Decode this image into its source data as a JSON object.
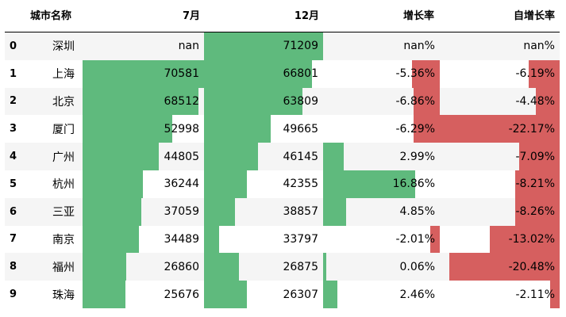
{
  "colors": {
    "positive": "#5fba7d",
    "negative": "#d65f5f",
    "stripe": "#f5f5f5",
    "plain": "#ffffff"
  },
  "table": {
    "headers": {
      "index": "",
      "city": "城市名称",
      "jul": "7月",
      "dec": "12月",
      "growth": "增长率",
      "self_growth": "自增长率"
    },
    "rows": [
      {
        "index": "0",
        "city": "深圳",
        "jul": "nan",
        "dec": "71209",
        "growth": "nan%",
        "self_growth": "nan%",
        "jul_fill": 0,
        "dec_fill": 1.0,
        "growth_dir": "none",
        "growth_fill": 0,
        "self_dir": "none",
        "self_fill": 0
      },
      {
        "index": "1",
        "city": "上海",
        "jul": "70581",
        "dec": "66801",
        "growth": "-5.36%",
        "self_growth": "-6.19%",
        "jul_fill": 1.0,
        "dec_fill": 0.906,
        "growth_dir": "neg",
        "growth_fill": 0.237,
        "self_dir": "neg",
        "self_fill": 0.258
      },
      {
        "index": "2",
        "city": "北京",
        "jul": "68512",
        "dec": "63809",
        "growth": "-6.86%",
        "self_growth": "-4.48%",
        "jul_fill": 0.954,
        "dec_fill": 0.824,
        "growth_dir": "neg",
        "growth_fill": 0.227,
        "self_dir": "neg",
        "self_fill": 0.202
      },
      {
        "index": "3",
        "city": "厦门",
        "jul": "52998",
        "dec": "49665",
        "growth": "-6.29%",
        "self_growth": "-22.17%",
        "jul_fill": 0.737,
        "dec_fill": 0.558,
        "growth_dir": "neg",
        "growth_fill": 0.226,
        "self_dir": "neg",
        "self_fill": 1.0
      },
      {
        "index": "4",
        "city": "广州",
        "jul": "44805",
        "dec": "46145",
        "growth": "2.99%",
        "self_growth": "-7.09%",
        "jul_fill": 0.627,
        "dec_fill": 0.452,
        "growth_dir": "pos",
        "growth_fill": 0.177,
        "self_dir": "neg",
        "self_fill": 0.337
      },
      {
        "index": "5",
        "city": "杭州",
        "jul": "36244",
        "dec": "42355",
        "growth": "16.86%",
        "self_growth": "-8.21%",
        "jul_fill": 0.494,
        "dec_fill": 0.358,
        "growth_dir": "pos",
        "growth_fill": 0.788,
        "self_dir": "neg",
        "self_fill": 0.373
      },
      {
        "index": "6",
        "city": "三亚",
        "jul": "37059",
        "dec": "38857",
        "growth": "4.85%",
        "self_growth": "-8.26%",
        "jul_fill": 0.486,
        "dec_fill": 0.263,
        "growth_dir": "pos",
        "growth_fill": 0.199,
        "self_dir": "neg",
        "self_fill": 0.373
      },
      {
        "index": "7",
        "city": "南京",
        "jul": "34489",
        "dec": "33797",
        "growth": "-2.01%",
        "self_growth": "-13.02%",
        "jul_fill": 0.466,
        "dec_fill": 0.128,
        "growth_dir": "neg",
        "growth_fill": 0.081,
        "self_dir": "neg",
        "self_fill": 0.585
      },
      {
        "index": "8",
        "city": "福州",
        "jul": "26860",
        "dec": "26875",
        "growth": "0.06%",
        "self_growth": "-20.48%",
        "jul_fill": 0.359,
        "dec_fill": 0.293,
        "growth_dir": "pos",
        "growth_fill": 0.03,
        "self_dir": "neg",
        "self_fill": 0.92
      },
      {
        "index": "9",
        "city": "珠海",
        "jul": "25676",
        "dec": "26307",
        "growth": "2.46%",
        "self_growth": "-2.11%",
        "jul_fill": 0.354,
        "dec_fill": 0.363,
        "growth_dir": "pos",
        "growth_fill": 0.125,
        "self_dir": "neg",
        "self_fill": 0.081
      }
    ]
  }
}
